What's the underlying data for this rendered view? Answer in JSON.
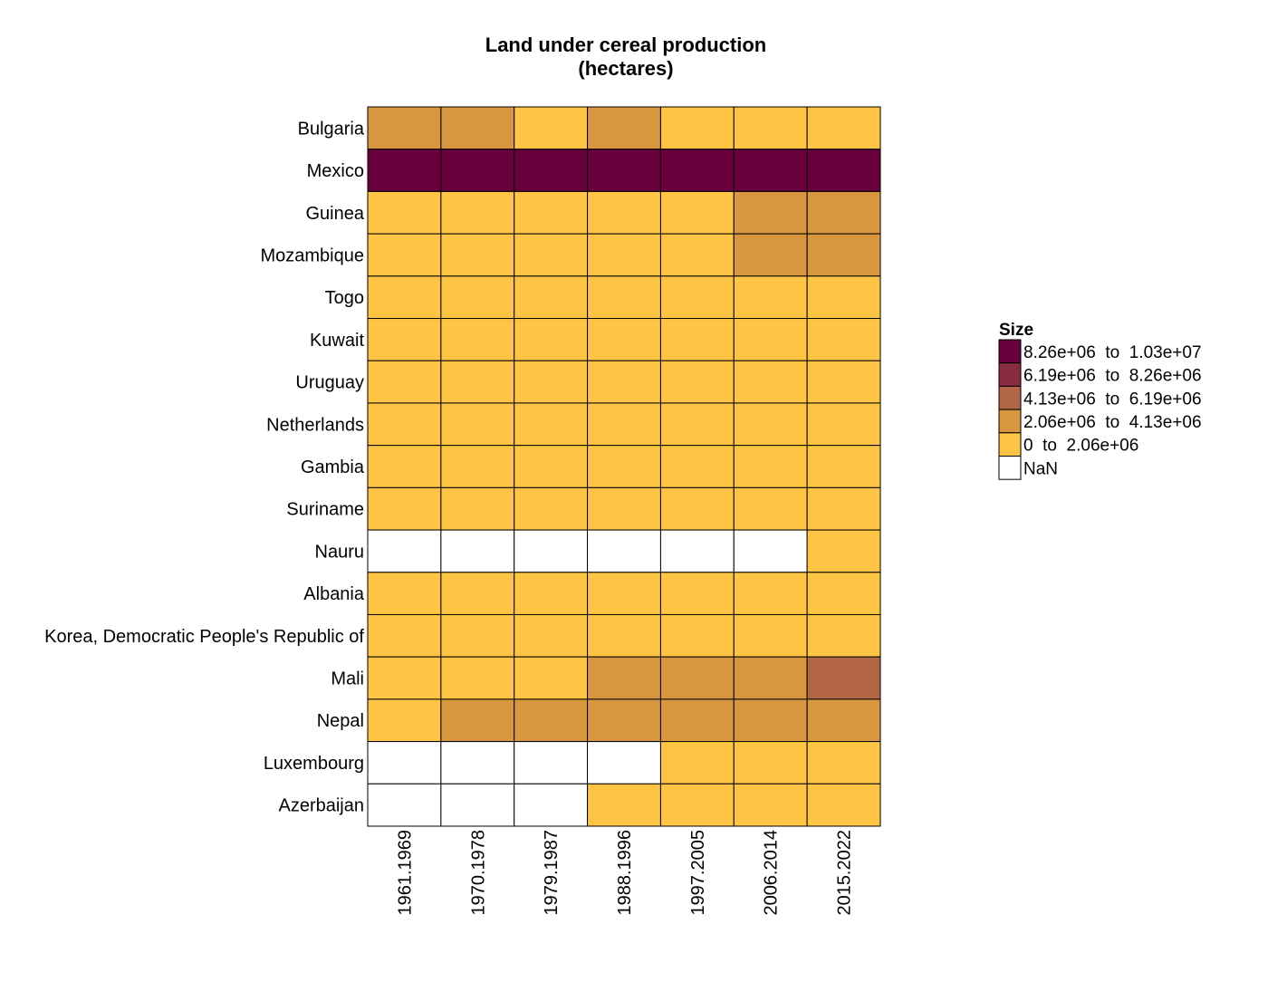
{
  "chart_data": {
    "type": "heatmap",
    "title": "Land under cereal production",
    "subtitle": "(hectares)",
    "xlabel": "",
    "ylabel": "",
    "x_categories": [
      "1961.1969",
      "1970.1978",
      "1979.1987",
      "1988.1996",
      "1997.2005",
      "2006.2014",
      "2015.2022"
    ],
    "y_categories": [
      "Bulgaria",
      "Mexico",
      "Guinea",
      "Mozambique",
      "Togo",
      "Kuwait",
      "Uruguay",
      "Netherlands",
      "Gambia",
      "Suriname",
      "Nauru",
      "Albania",
      "Korea, Democratic People's Republic of",
      "Mali",
      "Nepal",
      "Luxembourg",
      "Azerbaijan"
    ],
    "cells": [
      [
        1,
        1,
        0,
        1,
        0,
        0,
        0
      ],
      [
        4,
        4,
        4,
        4,
        4,
        4,
        4
      ],
      [
        0,
        0,
        0,
        0,
        0,
        1,
        1
      ],
      [
        0,
        0,
        0,
        0,
        0,
        1,
        1
      ],
      [
        0,
        0,
        0,
        0,
        0,
        0,
        0
      ],
      [
        0,
        0,
        0,
        0,
        0,
        0,
        0
      ],
      [
        0,
        0,
        0,
        0,
        0,
        0,
        0
      ],
      [
        0,
        0,
        0,
        0,
        0,
        0,
        0
      ],
      [
        0,
        0,
        0,
        0,
        0,
        0,
        0
      ],
      [
        0,
        0,
        0,
        0,
        0,
        0,
        0
      ],
      [
        null,
        null,
        null,
        null,
        null,
        null,
        0
      ],
      [
        0,
        0,
        0,
        0,
        0,
        0,
        0
      ],
      [
        0,
        0,
        0,
        0,
        0,
        0,
        0
      ],
      [
        0,
        0,
        0,
        1,
        1,
        1,
        2
      ],
      [
        0,
        1,
        1,
        1,
        1,
        1,
        1
      ],
      [
        null,
        null,
        null,
        null,
        0,
        0,
        0
      ],
      [
        null,
        null,
        null,
        0,
        0,
        0,
        0
      ]
    ],
    "legend": {
      "title": "Size",
      "position": "right",
      "entries": [
        {
          "label": "8.26e+06  to  1.03e+07",
          "color": "#67003b",
          "bin": 4
        },
        {
          "label": "6.19e+06  to  8.26e+06",
          "color": "#882c42",
          "bin": 3
        },
        {
          "label": "4.13e+06  to  6.19e+06",
          "color": "#b26645",
          "bin": 2
        },
        {
          "label": "2.06e+06  to  4.13e+06",
          "color": "#d8963f",
          "bin": 1
        },
        {
          "label": "0  to  2.06e+06",
          "color": "#fec444",
          "bin": 0
        },
        {
          "label": "NaN",
          "color": "#ffffff",
          "bin": null
        }
      ]
    },
    "grid": true
  }
}
